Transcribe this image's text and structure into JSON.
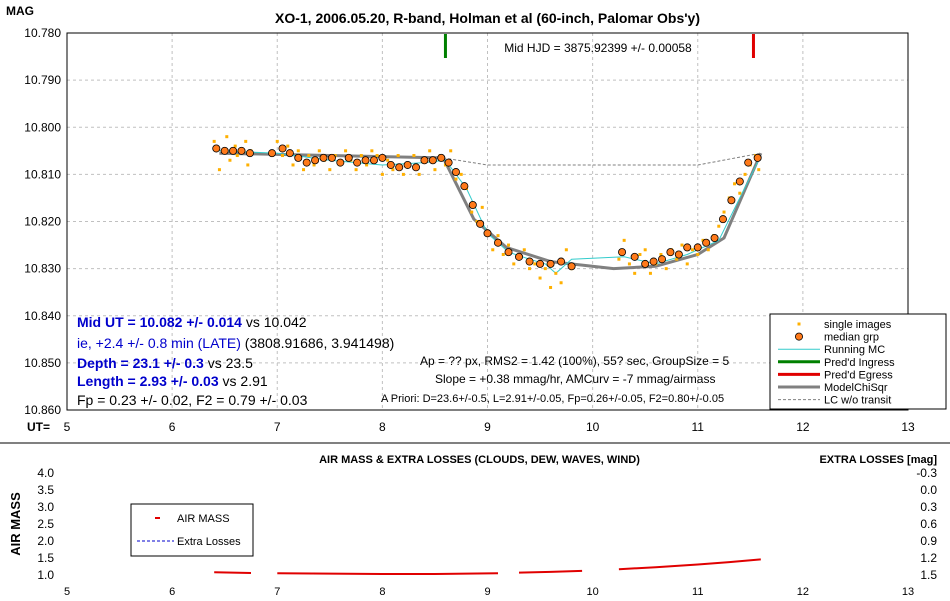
{
  "chart_data": [
    {
      "type": "scatter",
      "title": "XO-1, 2006.05.20, R-band, Holman et al (60-inch, Palomar Obs'y)",
      "ylabel": "MAG",
      "xlabel": "UT=",
      "xlim": [
        5,
        13
      ],
      "ylim": [
        10.78,
        10.86
      ],
      "y_inverted": true,
      "grid": true,
      "x_ticks": [
        5,
        6,
        7,
        8,
        9,
        10,
        11,
        12,
        13
      ],
      "y_ticks": [
        "10.780",
        "10.790",
        "10.800",
        "10.810",
        "10.820",
        "10.830",
        "10.840",
        "10.850",
        "10.860"
      ],
      "mid_hjd_label": "Mid HJD = 3875.92399 +/- 0.00058",
      "ingress_marker_x": 8.6,
      "egress_marker_x": 11.53,
      "annotations": {
        "mid_ut": "Mid UT = 10.082 +/- 0.014",
        "mid_ut_vs": "vs 10.042",
        "ie": "ie, +2.4 +/- 0.8 min (LATE)",
        "ie_paren": "(3808.91686, 3.941498)",
        "depth": "Depth = 23.1 +/- 0.3",
        "depth_vs": "vs 23.5",
        "length": "Length = 2.93 +/- 0.03",
        "length_vs": "vs 2.91",
        "fp": "Fp = 0.23 +/- 0.02, F2 = 0.79 +/- 0.03",
        "ap": "Ap = ?? px, RMS2 = 1.42 (100%), 55? sec, GroupSize = 5",
        "slope": "Slope = +0.38 mmag/hr, AMCurv = -7 mmag/airmass",
        "apriori": "A Priori: D=23.6+/-0.5, L=2.91+/-0.05, Fp=0.26+/-0.05, F2=0.80+/-0.05"
      },
      "legend": {
        "placement": "bottom-right",
        "entries": [
          "single images",
          "median grp",
          "Running MC",
          "Pred'd Ingress",
          "Pred'd Egress",
          "ModelChiSqr",
          "LC w/o transit"
        ]
      },
      "colors": {
        "single": "#ffb000",
        "median_fill": "#ff7a1a",
        "running": "#33cccc",
        "ingress": "#008000",
        "egress": "#e00000",
        "model": "#808080",
        "blue_text": "#0000cc"
      },
      "series": [
        {
          "name": "median grp",
          "x": [
            6.42,
            6.5,
            6.58,
            6.66,
            6.74,
            6.95,
            7.05,
            7.12,
            7.2,
            7.28,
            7.36,
            7.44,
            7.52,
            7.6,
            7.68,
            7.76,
            7.84,
            7.92,
            8.0,
            8.08,
            8.16,
            8.24,
            8.32,
            8.4,
            8.48,
            8.56,
            8.63,
            8.7,
            8.78,
            8.86,
            8.93,
            9.0,
            9.1,
            9.2,
            9.3,
            9.4,
            9.5,
            9.6,
            9.7,
            9.8,
            10.28,
            10.4,
            10.5,
            10.58,
            10.66,
            10.74,
            10.82,
            10.9,
            11.0,
            11.08,
            11.16,
            11.24,
            11.32,
            11.4,
            11.48,
            11.57
          ],
          "y": [
            10.8045,
            10.805,
            10.805,
            10.805,
            10.8055,
            10.8055,
            10.8045,
            10.8055,
            10.8065,
            10.8075,
            10.807,
            10.8065,
            10.8065,
            10.8075,
            10.8065,
            10.8075,
            10.807,
            10.807,
            10.8065,
            10.808,
            10.8085,
            10.808,
            10.8085,
            10.807,
            10.807,
            10.8065,
            10.8075,
            10.8095,
            10.8125,
            10.8165,
            10.8205,
            10.8225,
            10.8245,
            10.8265,
            10.8275,
            10.8285,
            10.829,
            10.829,
            10.8285,
            10.8295,
            10.8265,
            10.8275,
            10.829,
            10.8285,
            10.828,
            10.8265,
            10.827,
            10.8255,
            10.8255,
            10.8245,
            10.8235,
            10.8195,
            10.8155,
            10.8115,
            10.8075,
            10.8065
          ]
        },
        {
          "name": "single images",
          "x": [
            6.4,
            6.45,
            6.5,
            6.52,
            6.55,
            6.6,
            6.62,
            6.7,
            6.72,
            6.75,
            6.95,
            7.0,
            7.05,
            7.1,
            7.15,
            7.2,
            7.25,
            7.3,
            7.35,
            7.4,
            7.45,
            7.5,
            7.55,
            7.6,
            7.65,
            7.7,
            7.75,
            7.8,
            7.85,
            7.9,
            7.95,
            8.0,
            8.05,
            8.1,
            8.15,
            8.2,
            8.25,
            8.3,
            8.35,
            8.4,
            8.45,
            8.5,
            8.55,
            8.6,
            8.65,
            8.7,
            8.75,
            8.8,
            8.85,
            8.9,
            8.95,
            9.0,
            9.05,
            9.1,
            9.15,
            9.2,
            9.25,
            9.3,
            9.35,
            9.4,
            9.45,
            9.5,
            9.55,
            9.6,
            9.65,
            9.7,
            9.75,
            9.8,
            10.25,
            10.3,
            10.35,
            10.4,
            10.45,
            10.5,
            10.55,
            10.6,
            10.65,
            10.7,
            10.75,
            10.8,
            10.85,
            10.9,
            10.95,
            11.0,
            11.05,
            11.1,
            11.15,
            11.2,
            11.25,
            11.3,
            11.35,
            11.4,
            11.45,
            11.5,
            11.55,
            11.58
          ],
          "y": [
            10.803,
            10.809,
            10.805,
            10.802,
            10.807,
            10.804,
            10.806,
            10.803,
            10.808,
            10.805,
            10.806,
            10.803,
            10.806,
            10.804,
            10.808,
            10.805,
            10.809,
            10.806,
            10.808,
            10.805,
            10.807,
            10.809,
            10.806,
            10.808,
            10.805,
            10.807,
            10.809,
            10.806,
            10.808,
            10.805,
            10.806,
            10.81,
            10.807,
            10.809,
            10.806,
            10.81,
            10.808,
            10.806,
            10.81,
            10.807,
            10.805,
            10.809,
            10.806,
            10.808,
            10.805,
            10.811,
            10.81,
            10.813,
            10.818,
            10.82,
            10.817,
            10.822,
            10.826,
            10.823,
            10.827,
            10.825,
            10.829,
            10.827,
            10.826,
            10.83,
            10.829,
            10.832,
            10.83,
            10.834,
            10.831,
            10.833,
            10.826,
            10.83,
            10.828,
            10.824,
            10.829,
            10.831,
            10.827,
            10.826,
            10.831,
            10.829,
            10.827,
            10.83,
            10.826,
            10.828,
            10.825,
            10.829,
            10.826,
            10.827,
            10.824,
            10.826,
            10.823,
            10.821,
            10.818,
            10.815,
            10.812,
            10.814,
            10.81,
            10.808,
            10.806,
            10.809
          ]
        },
        {
          "name": "ModelChiSqr",
          "x": [
            6.45,
            8.58,
            8.87,
            9.18,
            9.6,
            10.2,
            10.6,
            11.0,
            11.25,
            11.6
          ],
          "y": [
            10.8055,
            10.8065,
            10.8195,
            10.8255,
            10.8285,
            10.83,
            10.8295,
            10.827,
            10.8235,
            10.8055
          ]
        },
        {
          "name": "LC w/o transit",
          "x": [
            8.58,
            9.0,
            10.0,
            11.0,
            11.6
          ],
          "y": [
            10.8065,
            10.808,
            10.808,
            10.808,
            10.8055
          ]
        },
        {
          "name": "Running MC",
          "x": [
            6.45,
            7.0,
            7.5,
            8.0,
            8.4,
            8.6,
            8.8,
            9.0,
            9.2,
            9.4,
            9.55,
            9.65,
            9.8,
            10.3,
            10.6,
            10.9,
            11.2,
            11.4,
            11.58
          ],
          "y": [
            10.805,
            10.8055,
            10.807,
            10.808,
            10.8075,
            10.807,
            10.813,
            10.8225,
            10.8265,
            10.828,
            10.829,
            10.831,
            10.828,
            10.8275,
            10.829,
            10.827,
            10.824,
            10.815,
            10.807
          ]
        }
      ]
    },
    {
      "type": "line",
      "title": "AIR MASS & EXTRA LOSSES (CLOUDS, DEW, WAVES, WIND)",
      "ylabel": "AIR MASS",
      "y2label": "EXTRA LOSSES [mag]",
      "xlim": [
        5,
        13
      ],
      "ylim": [
        1.0,
        4.0
      ],
      "x_ticks": [
        5,
        6,
        7,
        8,
        9,
        10,
        11,
        12,
        13
      ],
      "y_ticks": [
        "1.0",
        "1.5",
        "2.0",
        "2.5",
        "3.0",
        "3.5",
        "4.0"
      ],
      "y2_ticks": [
        "1.5",
        "1.2",
        "0.9",
        "0.6",
        "0.3",
        "0.0",
        "-0.3"
      ],
      "legend": {
        "placement": "top-left",
        "entries": [
          "AIR MASS",
          "Extra Losses"
        ]
      },
      "series": [
        {
          "name": "AIR MASS",
          "x": [
            6.4,
            6.75,
            7.0,
            7.5,
            8.0,
            8.5,
            9.1,
            9.3,
            9.6,
            9.9,
            10.25,
            10.6,
            11.0,
            11.3,
            11.6
          ],
          "y": [
            1.08,
            1.06,
            1.05,
            1.04,
            1.03,
            1.03,
            1.05,
            1.07,
            1.09,
            1.12,
            1.17,
            1.23,
            1.31,
            1.38,
            1.46
          ]
        }
      ]
    }
  ]
}
